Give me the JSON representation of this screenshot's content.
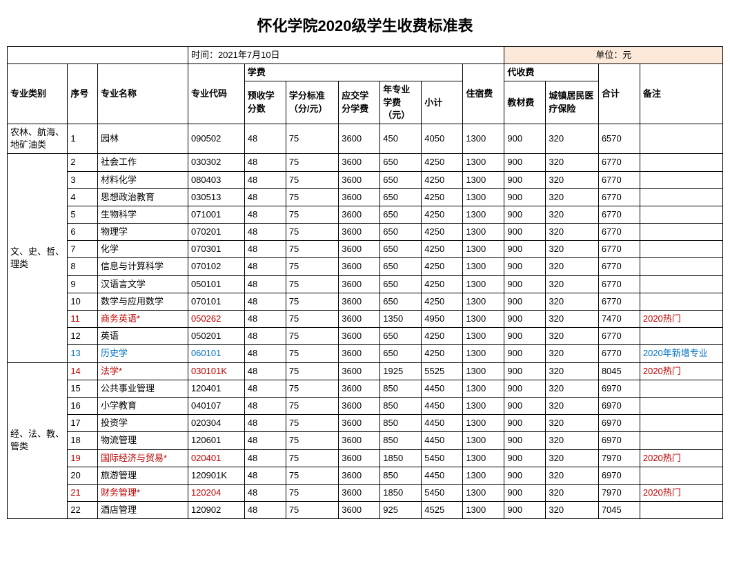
{
  "title": "怀化学院2020级学生收费标准表",
  "meta": {
    "date_label": "时间：2021年7月10日",
    "unit_label": "单位：元",
    "unit_bg": "#fde9d9"
  },
  "colors": {
    "text": "#000000",
    "red": "#c00000",
    "blue": "#0070c0",
    "border": "#000000",
    "bg": "#ffffff"
  },
  "headers": {
    "category": "专业类别",
    "index": "序号",
    "major_name": "专业名称",
    "major_code": "专业代码",
    "tuition_group": "学费",
    "pre_credits": "预收学分数",
    "credit_std": "学分标准（分/元）",
    "credit_fee": "应交学分学费",
    "year_major_fee": "年专业学费（元）",
    "subtotal": "小计",
    "dorm_fee": "住宿费",
    "agent_group": "代收费",
    "book_fee": "教材费",
    "insurance": "城镇居民医疗保险",
    "total": "合计",
    "remark": "备注"
  },
  "groups": [
    {
      "category": "农林、航海、地矿油类",
      "rows": [
        {
          "idx": "1",
          "name": "园林",
          "code": "090502",
          "c1": "48",
          "c2": "75",
          "c3": "3600",
          "c4": "450",
          "c5": "4050",
          "c6": "1300",
          "c7": "900",
          "c8": "320",
          "c9": "6570",
          "remark": "",
          "color": "black"
        }
      ]
    },
    {
      "category": "文、史、哲、理类",
      "rows": [
        {
          "idx": "2",
          "name": "社会工作",
          "code": "030302",
          "c1": "48",
          "c2": "75",
          "c3": "3600",
          "c4": "650",
          "c5": "4250",
          "c6": "1300",
          "c7": "900",
          "c8": "320",
          "c9": "6770",
          "remark": "",
          "color": "black"
        },
        {
          "idx": "3",
          "name": "材料化学",
          "code": "080403",
          "c1": "48",
          "c2": "75",
          "c3": "3600",
          "c4": "650",
          "c5": "4250",
          "c6": "1300",
          "c7": "900",
          "c8": "320",
          "c9": "6770",
          "remark": "",
          "color": "black"
        },
        {
          "idx": "4",
          "name": "思想政治教育",
          "code": "030513",
          "c1": "48",
          "c2": "75",
          "c3": "3600",
          "c4": "650",
          "c5": "4250",
          "c6": "1300",
          "c7": "900",
          "c8": "320",
          "c9": "6770",
          "remark": "",
          "color": "black"
        },
        {
          "idx": "5",
          "name": "生物科学",
          "code": "071001",
          "c1": "48",
          "c2": "75",
          "c3": "3600",
          "c4": "650",
          "c5": "4250",
          "c6": "1300",
          "c7": "900",
          "c8": "320",
          "c9": "6770",
          "remark": "",
          "color": "black"
        },
        {
          "idx": "6",
          "name": "物理学",
          "code": "070201",
          "c1": "48",
          "c2": "75",
          "c3": "3600",
          "c4": "650",
          "c5": "4250",
          "c6": "1300",
          "c7": "900",
          "c8": "320",
          "c9": "6770",
          "remark": "",
          "color": "black"
        },
        {
          "idx": "7",
          "name": "化学",
          "code": "070301",
          "c1": "48",
          "c2": "75",
          "c3": "3600",
          "c4": "650",
          "c5": "4250",
          "c6": "1300",
          "c7": "900",
          "c8": "320",
          "c9": "6770",
          "remark": "",
          "color": "black"
        },
        {
          "idx": "8",
          "name": "信息与计算科学",
          "code": "070102",
          "c1": "48",
          "c2": "75",
          "c3": "3600",
          "c4": "650",
          "c5": "4250",
          "c6": "1300",
          "c7": "900",
          "c8": "320",
          "c9": "6770",
          "remark": "",
          "color": "black"
        },
        {
          "idx": "9",
          "name": "汉语言文学",
          "code": "050101",
          "c1": "48",
          "c2": "75",
          "c3": "3600",
          "c4": "650",
          "c5": "4250",
          "c6": "1300",
          "c7": "900",
          "c8": "320",
          "c9": "6770",
          "remark": "",
          "color": "black"
        },
        {
          "idx": "10",
          "name": "数学与应用数学",
          "code": "070101",
          "c1": "48",
          "c2": "75",
          "c3": "3600",
          "c4": "650",
          "c5": "4250",
          "c6": "1300",
          "c7": "900",
          "c8": "320",
          "c9": "6770",
          "remark": "",
          "color": "black"
        },
        {
          "idx": "11",
          "name": "商务英语*",
          "code": "050262",
          "c1": "48",
          "c2": "75",
          "c3": "3600",
          "c4": "1350",
          "c5": "4950",
          "c6": "1300",
          "c7": "900",
          "c8": "320",
          "c9": "7470",
          "remark": "2020热门",
          "color": "red"
        },
        {
          "idx": "12",
          "name": "英语",
          "code": "050201",
          "c1": "48",
          "c2": "75",
          "c3": "3600",
          "c4": "650",
          "c5": "4250",
          "c6": "1300",
          "c7": "900",
          "c8": "320",
          "c9": "6770",
          "remark": "",
          "color": "black"
        },
        {
          "idx": "13",
          "name": "历史学",
          "code": "060101",
          "c1": "48",
          "c2": "75",
          "c3": "3600",
          "c4": "650",
          "c5": "4250",
          "c6": "1300",
          "c7": "900",
          "c8": "320",
          "c9": "6770",
          "remark": "2020年新增专业",
          "color": "blue"
        }
      ]
    },
    {
      "category": "经、法、教、管类",
      "rows": [
        {
          "idx": "14",
          "name": "法学*",
          "code": "030101K",
          "c1": "48",
          "c2": "75",
          "c3": "3600",
          "c4": "1925",
          "c5": "5525",
          "c6": "1300",
          "c7": "900",
          "c8": "320",
          "c9": "8045",
          "remark": "2020热门",
          "color": "red"
        },
        {
          "idx": "15",
          "name": "公共事业管理",
          "code": "120401",
          "c1": "48",
          "c2": "75",
          "c3": "3600",
          "c4": "850",
          "c5": "4450",
          "c6": "1300",
          "c7": "900",
          "c8": "320",
          "c9": "6970",
          "remark": "",
          "color": "black"
        },
        {
          "idx": "16",
          "name": "小学教育",
          "code": "040107",
          "c1": "48",
          "c2": "75",
          "c3": "3600",
          "c4": "850",
          "c5": "4450",
          "c6": "1300",
          "c7": "900",
          "c8": "320",
          "c9": "6970",
          "remark": "",
          "color": "black"
        },
        {
          "idx": "17",
          "name": "投资学",
          "code": "020304",
          "c1": "48",
          "c2": "75",
          "c3": "3600",
          "c4": "850",
          "c5": "4450",
          "c6": "1300",
          "c7": "900",
          "c8": "320",
          "c9": "6970",
          "remark": "",
          "color": "black"
        },
        {
          "idx": "18",
          "name": "物流管理",
          "code": "120601",
          "c1": "48",
          "c2": "75",
          "c3": "3600",
          "c4": "850",
          "c5": "4450",
          "c6": "1300",
          "c7": "900",
          "c8": "320",
          "c9": "6970",
          "remark": "",
          "color": "black"
        },
        {
          "idx": "19",
          "name": "国际经济与贸易*",
          "code": "020401",
          "c1": "48",
          "c2": "75",
          "c3": "3600",
          "c4": "1850",
          "c5": "5450",
          "c6": "1300",
          "c7": "900",
          "c8": "320",
          "c9": "7970",
          "remark": "2020热门",
          "color": "red"
        },
        {
          "idx": "20",
          "name": "旅游管理",
          "code": "120901K",
          "c1": "48",
          "c2": "75",
          "c3": "3600",
          "c4": "850",
          "c5": "4450",
          "c6": "1300",
          "c7": "900",
          "c8": "320",
          "c9": "6970",
          "remark": "",
          "color": "black"
        },
        {
          "idx": "21",
          "name": "财务管理*",
          "code": "120204",
          "c1": "48",
          "c2": "75",
          "c3": "3600",
          "c4": "1850",
          "c5": "5450",
          "c6": "1300",
          "c7": "900",
          "c8": "320",
          "c9": "7970",
          "remark": "2020热门",
          "color": "red"
        },
        {
          "idx": "22",
          "name": "酒店管理",
          "code": "120902",
          "c1": "48",
          "c2": "75",
          "c3": "3600",
          "c4": "925",
          "c5": "4525",
          "c6": "1300",
          "c7": "900",
          "c8": "320",
          "c9": "7045",
          "remark": "",
          "color": "black"
        }
      ]
    }
  ]
}
